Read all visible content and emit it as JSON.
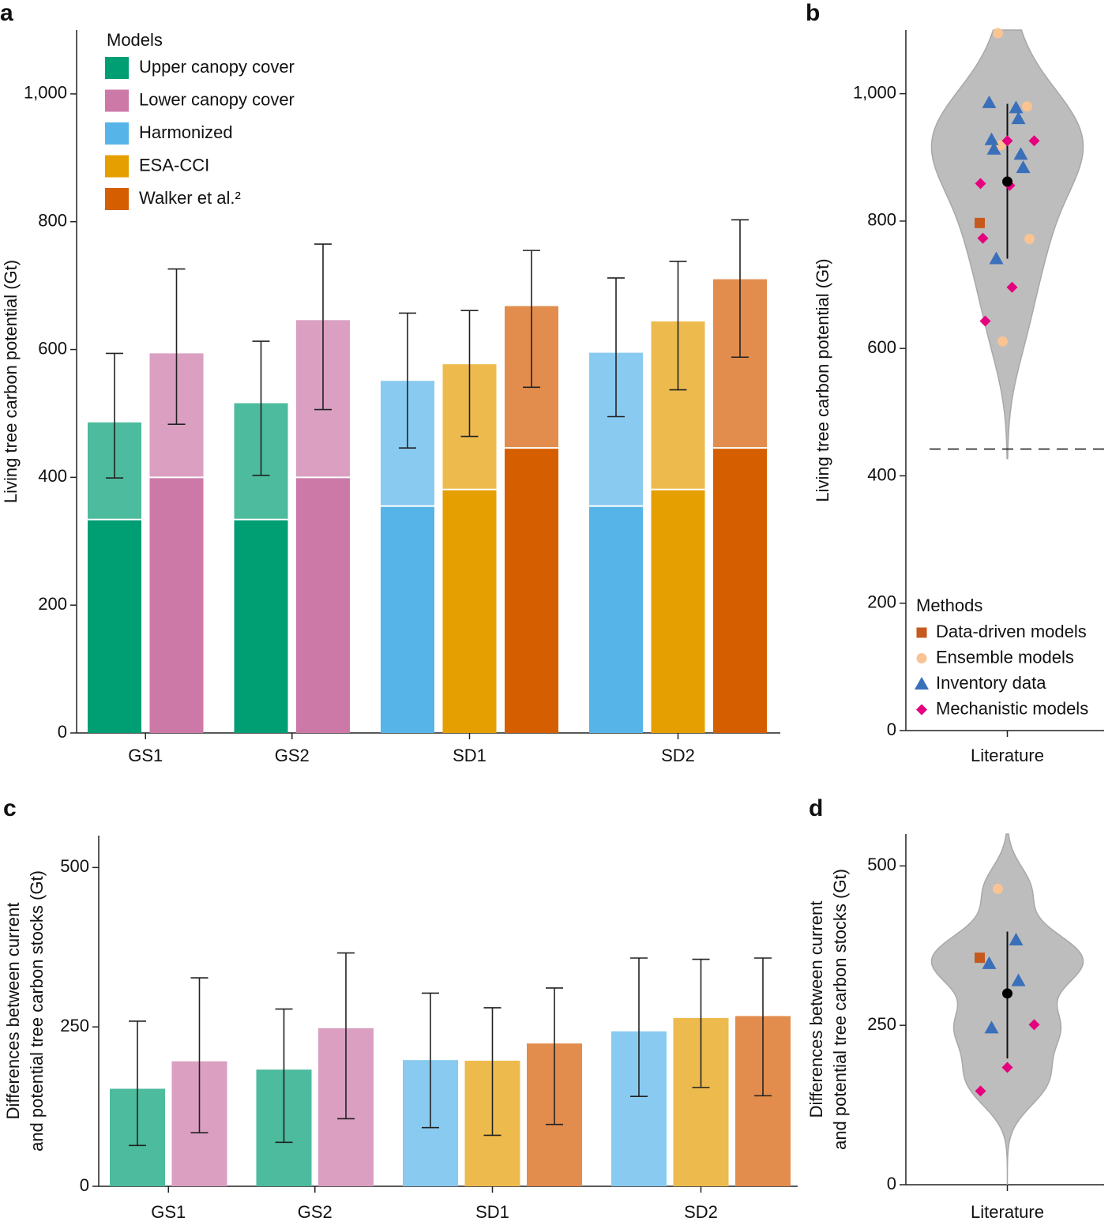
{
  "chart_data": [
    {
      "type": "bar",
      "panel": "a",
      "ylabel": "Living tree carbon potential (Gt)",
      "categories": [
        "GS1",
        "GS2",
        "SD1",
        "SD2"
      ],
      "ylim": [
        0,
        1100
      ],
      "yticks": [
        0,
        200,
        400,
        600,
        800,
        {
          "value": 1000,
          "label": "1,000"
        }
      ],
      "legend_title": "Models",
      "series": [
        {
          "name": "Upper canopy cover",
          "color": "#009e73",
          "light_color": "#4dbb9d",
          "current": [
            334,
            334,
            null,
            null
          ],
          "difference": [
            152,
            182,
            null,
            null
          ],
          "error_low": [
            399,
            403,
            null,
            null
          ],
          "error_high": [
            594,
            613,
            null,
            null
          ]
        },
        {
          "name": "Lower canopy cover",
          "color": "#cc79a7",
          "light_color": "#da9fc1",
          "current": [
            400,
            400,
            null,
            null
          ],
          "difference": [
            194,
            246,
            null,
            null
          ],
          "error_low": [
            483,
            506,
            null,
            null
          ],
          "error_high": [
            726,
            765,
            null,
            null
          ]
        },
        {
          "name": "Harmonized",
          "color": "#56b4e9",
          "light_color": "#89caf0",
          "current": [
            null,
            null,
            355,
            355
          ],
          "difference": [
            null,
            null,
            196,
            240
          ],
          "error_low": [
            null,
            null,
            446,
            495
          ],
          "error_high": [
            null,
            null,
            657,
            712
          ]
        },
        {
          "name": "ESA-CCI",
          "color": "#e69f00",
          "light_color": "#edbb4d",
          "current": [
            null,
            null,
            381,
            381
          ],
          "difference": [
            null,
            null,
            196,
            263
          ],
          "error_low": [
            null,
            null,
            464,
            537
          ],
          "error_high": [
            null,
            null,
            661,
            738
          ]
        },
        {
          "name": "Walker et al.²",
          "color": "#d55e00",
          "light_color": "#e28d4d",
          "current": [
            null,
            null,
            446,
            446
          ],
          "difference": [
            null,
            null,
            222,
            264
          ],
          "error_low": [
            null,
            null,
            541,
            588
          ],
          "error_high": [
            null,
            null,
            755,
            803
          ]
        }
      ]
    },
    {
      "type": "violin",
      "panel": "b",
      "ylabel": "Living tree carbon potential (Gt)",
      "categories": [
        "Literature"
      ],
      "ylim": [
        0,
        1100
      ],
      "yticks": [
        0,
        200,
        400,
        600,
        800,
        {
          "value": 1000,
          "label": "1,000"
        }
      ],
      "hline": 442,
      "legend_title": "Methods",
      "mean": 862,
      "mean_low": 741,
      "mean_high": 984,
      "series": [
        {
          "name": "Data-driven models",
          "color": "#c65a1e",
          "marker": "square",
          "values": [
            797
          ]
        },
        {
          "name": "Ensemble models",
          "color": "#f9c393",
          "marker": "circle",
          "values": [
            1095,
            980,
            919,
            772,
            611
          ]
        },
        {
          "name": "Inventory data",
          "color": "#3a6fba",
          "marker": "triangle",
          "values": [
            978,
            986,
            961,
            928,
            905,
            913,
            884,
            741
          ]
        },
        {
          "name": "Mechanistic models",
          "color": "#e5007e",
          "marker": "diamond",
          "values": [
            926,
            926,
            859,
            856,
            773,
            696,
            643
          ]
        }
      ]
    },
    {
      "type": "bar",
      "panel": "c",
      "ylabel": [
        "Differences between current",
        "and potential tree carbon stocks (Gt)"
      ],
      "categories": [
        "GS1",
        "GS2",
        "SD1",
        "SD2"
      ],
      "ylim": [
        0,
        550
      ],
      "yticks": [
        0,
        250,
        500
      ],
      "series": [
        {
          "color": "#4dbb9d",
          "values": [
            153,
            183,
            null,
            null
          ],
          "error_low": [
            64,
            69,
            null,
            null
          ],
          "error_high": [
            259,
            278,
            null,
            null
          ]
        },
        {
          "color": "#da9fc1",
          "values": [
            196,
            248,
            null,
            null
          ],
          "error_low": [
            84,
            106,
            null,
            null
          ],
          "error_high": [
            327,
            366,
            null,
            null
          ]
        },
        {
          "color": "#89caf0",
          "values": [
            null,
            null,
            198,
            243
          ],
          "error_low": [
            null,
            null,
            92,
            141
          ],
          "error_high": [
            null,
            null,
            303,
            358
          ]
        },
        {
          "color": "#edbb4d",
          "values": [
            null,
            null,
            197,
            264
          ],
          "error_low": [
            null,
            null,
            80,
            155
          ],
          "error_high": [
            null,
            null,
            280,
            356
          ]
        },
        {
          "color": "#e28d4d",
          "values": [
            null,
            null,
            224,
            267
          ],
          "error_low": [
            null,
            null,
            97,
            142
          ],
          "error_high": [
            null,
            null,
            311,
            358
          ]
        }
      ]
    },
    {
      "type": "violin",
      "panel": "d",
      "ylabel": [
        "Differences between current",
        "and potential tree carbon stocks (Gt)"
      ],
      "categories": [
        "Literature"
      ],
      "ylim": [
        0,
        550
      ],
      "yticks": [
        0,
        250,
        500
      ],
      "mean": 300,
      "mean_low": 198,
      "mean_high": 397,
      "series": [
        {
          "color": "#c65a1e",
          "marker": "square",
          "values": [
            356
          ]
        },
        {
          "color": "#f9c393",
          "marker": "circle",
          "values": [
            464
          ]
        },
        {
          "color": "#3a6fba",
          "marker": "triangle",
          "values": [
            384,
            347,
            320,
            246
          ]
        },
        {
          "color": "#e5007e",
          "marker": "diamond",
          "values": [
            251,
            184,
            147
          ]
        }
      ]
    }
  ]
}
